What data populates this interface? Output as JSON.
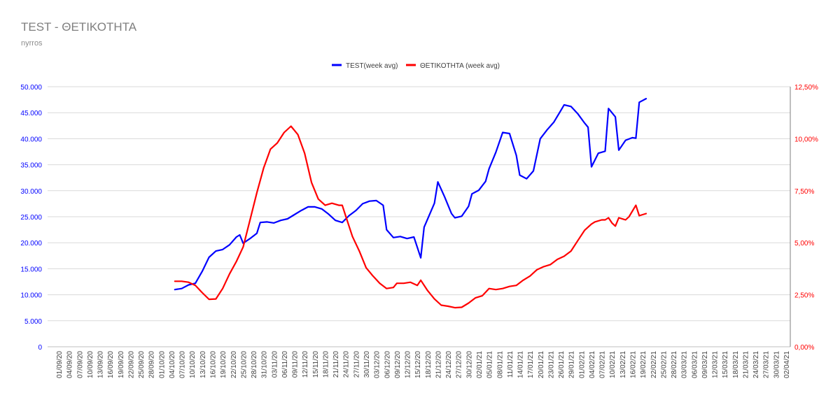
{
  "title": "TEST - ΘΕΤΙΚΟΤΗΤΑ",
  "subtitle": "nyrros",
  "chart_data": {
    "type": "line",
    "legend_position": "top-center",
    "grid": true,
    "categories": [
      "01/09/20",
      "04/09/20",
      "07/09/20",
      "10/09/20",
      "13/09/20",
      "16/09/20",
      "19/09/20",
      "22/09/20",
      "25/09/20",
      "28/09/20",
      "01/10/20",
      "04/10/20",
      "07/10/20",
      "10/10/20",
      "13/10/20",
      "16/10/20",
      "19/10/20",
      "22/10/20",
      "25/10/20",
      "28/10/20",
      "31/10/20",
      "03/11/20",
      "06/11/20",
      "09/11/20",
      "12/11/20",
      "15/11/20",
      "18/11/20",
      "21/11/20",
      "24/11/20",
      "27/11/20",
      "30/11/20",
      "03/12/20",
      "06/12/20",
      "09/12/20",
      "12/12/20",
      "15/12/20",
      "18/12/20",
      "21/12/20",
      "24/12/20",
      "27/12/20",
      "30/12/20",
      "02/01/21",
      "05/01/21",
      "08/01/21",
      "11/01/21",
      "14/01/21",
      "17/01/21",
      "20/01/21",
      "23/01/21",
      "26/01/21",
      "29/01/21",
      "01/02/21",
      "04/02/21",
      "07/02/21",
      "10/02/21",
      "13/02/21",
      "16/02/21",
      "19/02/21",
      "22/02/21",
      "25/02/21",
      "28/02/21",
      "03/03/21",
      "06/03/21",
      "09/03/21",
      "12/03/21",
      "15/03/21",
      "18/03/21",
      "21/03/21",
      "24/03/21",
      "27/03/21",
      "30/03/21",
      "02/04/21"
    ],
    "y_left": {
      "min": 0,
      "max": 50000,
      "ticks": [
        "0",
        "5.000",
        "10.000",
        "15.000",
        "20.000",
        "25.000",
        "30.000",
        "35.000",
        "40.000",
        "45.000",
        "50.000"
      ],
      "color": "#0000ff"
    },
    "y_right": {
      "min": 0,
      "max": 12.5,
      "ticks": [
        "0,00%",
        "2,50%",
        "5,00%",
        "7,50%",
        "10,00%",
        "12,50%"
      ],
      "color": "#ff0000"
    },
    "series": [
      {
        "name": "TEST(week avg)",
        "color": "#0000ff",
        "axis": "left",
        "points": [
          [
            34,
            11000
          ],
          [
            36,
            11200
          ],
          [
            38,
            11900
          ],
          [
            40,
            12200
          ],
          [
            42,
            14500
          ],
          [
            44,
            17200
          ],
          [
            46,
            18400
          ],
          [
            48,
            18700
          ],
          [
            50,
            19600
          ],
          [
            52,
            21100
          ],
          [
            53,
            21500
          ],
          [
            54,
            19900
          ],
          [
            56,
            20800
          ],
          [
            58,
            21800
          ],
          [
            59,
            23900
          ],
          [
            61,
            24000
          ],
          [
            63,
            23800
          ],
          [
            65,
            24300
          ],
          [
            67,
            24600
          ],
          [
            69,
            25400
          ],
          [
            71,
            26200
          ],
          [
            73,
            26900
          ],
          [
            75,
            26900
          ],
          [
            77,
            26500
          ],
          [
            79,
            25500
          ],
          [
            81,
            24300
          ],
          [
            83,
            23900
          ],
          [
            85,
            25200
          ],
          [
            87,
            26200
          ],
          [
            89,
            27500
          ],
          [
            91,
            28000
          ],
          [
            93,
            28100
          ],
          [
            95,
            27200
          ],
          [
            96,
            22500
          ],
          [
            98,
            21000
          ],
          [
            100,
            21200
          ],
          [
            102,
            20800
          ],
          [
            104,
            21100
          ],
          [
            106,
            17100
          ],
          [
            107,
            23000
          ],
          [
            110,
            27600
          ],
          [
            111,
            31700
          ],
          [
            113,
            28800
          ],
          [
            115,
            25600
          ],
          [
            116,
            24800
          ],
          [
            118,
            25100
          ],
          [
            120,
            27000
          ],
          [
            121,
            29400
          ],
          [
            123,
            30100
          ],
          [
            125,
            31800
          ],
          [
            126,
            34200
          ],
          [
            128,
            37400
          ],
          [
            130,
            41200
          ],
          [
            132,
            41000
          ],
          [
            134,
            36800
          ],
          [
            135,
            33000
          ],
          [
            137,
            32300
          ],
          [
            139,
            33800
          ],
          [
            141,
            40000
          ],
          [
            143,
            41700
          ],
          [
            145,
            43200
          ],
          [
            147,
            45400
          ],
          [
            148,
            46500
          ],
          [
            150,
            46200
          ],
          [
            152,
            44800
          ],
          [
            154,
            43000
          ],
          [
            155,
            42200
          ],
          [
            156,
            34600
          ],
          [
            158,
            37200
          ],
          [
            160,
            37600
          ],
          [
            161,
            45800
          ],
          [
            163,
            44200
          ],
          [
            164,
            37800
          ],
          [
            166,
            39700
          ],
          [
            168,
            40200
          ],
          [
            169,
            40100
          ],
          [
            170,
            47000
          ],
          [
            172,
            47700
          ]
        ]
      },
      {
        "name": "ΘΕΤΙΚΟΤΗΤΑ (week avg)",
        "color": "#ff0000",
        "axis": "right",
        "points": [
          [
            34,
            3.15
          ],
          [
            36,
            3.15
          ],
          [
            38,
            3.1
          ],
          [
            40,
            2.95
          ],
          [
            42,
            2.6
          ],
          [
            44,
            2.28
          ],
          [
            46,
            2.3
          ],
          [
            48,
            2.8
          ],
          [
            50,
            3.5
          ],
          [
            52,
            4.1
          ],
          [
            54,
            4.8
          ],
          [
            56,
            6.1
          ],
          [
            58,
            7.4
          ],
          [
            60,
            8.6
          ],
          [
            62,
            9.5
          ],
          [
            64,
            9.8
          ],
          [
            66,
            10.3
          ],
          [
            68,
            10.6
          ],
          [
            70,
            10.2
          ],
          [
            72,
            9.3
          ],
          [
            74,
            7.9
          ],
          [
            76,
            7.1
          ],
          [
            78,
            6.8
          ],
          [
            80,
            6.9
          ],
          [
            82,
            6.8
          ],
          [
            83,
            6.8
          ],
          [
            84,
            6.3
          ],
          [
            86,
            5.3
          ],
          [
            88,
            4.6
          ],
          [
            90,
            3.8
          ],
          [
            92,
            3.4
          ],
          [
            94,
            3.05
          ],
          [
            96,
            2.8
          ],
          [
            98,
            2.85
          ],
          [
            99,
            3.05
          ],
          [
            101,
            3.05
          ],
          [
            103,
            3.1
          ],
          [
            105,
            2.95
          ],
          [
            106,
            3.2
          ],
          [
            108,
            2.7
          ],
          [
            110,
            2.3
          ],
          [
            112,
            2.0
          ],
          [
            114,
            1.95
          ],
          [
            116,
            1.88
          ],
          [
            118,
            1.9
          ],
          [
            120,
            2.1
          ],
          [
            122,
            2.35
          ],
          [
            124,
            2.45
          ],
          [
            126,
            2.8
          ],
          [
            128,
            2.75
          ],
          [
            130,
            2.8
          ],
          [
            132,
            2.9
          ],
          [
            134,
            2.95
          ],
          [
            136,
            3.2
          ],
          [
            138,
            3.4
          ],
          [
            140,
            3.7
          ],
          [
            142,
            3.85
          ],
          [
            144,
            3.95
          ],
          [
            146,
            4.2
          ],
          [
            148,
            4.35
          ],
          [
            150,
            4.6
          ],
          [
            152,
            5.1
          ],
          [
            154,
            5.6
          ],
          [
            156,
            5.9
          ],
          [
            157,
            6.0
          ],
          [
            159,
            6.1
          ],
          [
            160,
            6.1
          ],
          [
            161,
            6.2
          ],
          [
            162,
            5.95
          ],
          [
            163,
            5.8
          ],
          [
            164,
            6.2
          ],
          [
            166,
            6.1
          ],
          [
            167,
            6.25
          ],
          [
            169,
            6.8
          ],
          [
            170,
            6.3
          ],
          [
            172,
            6.4
          ]
        ]
      }
    ]
  }
}
